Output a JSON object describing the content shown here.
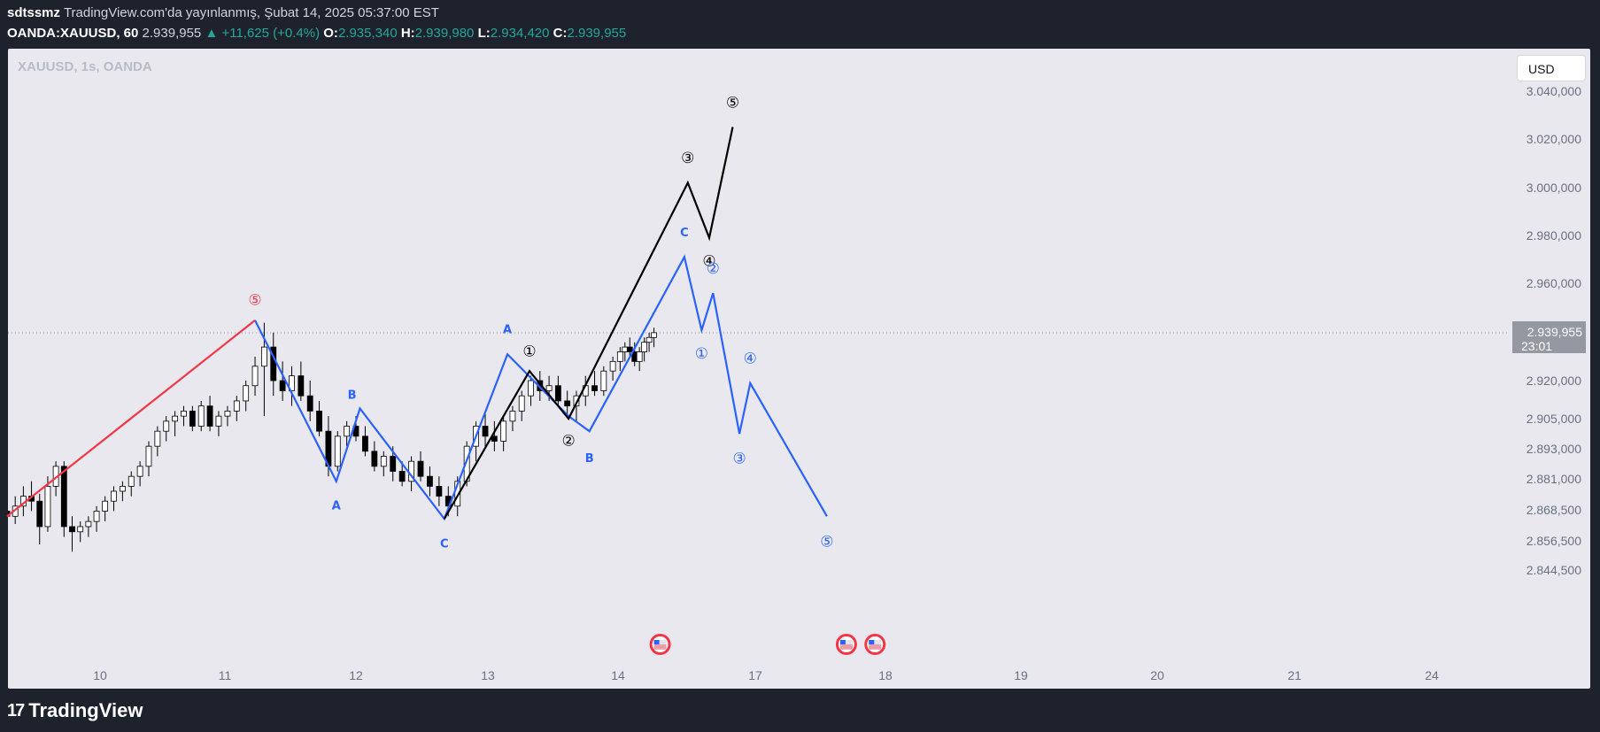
{
  "header": {
    "author": "sdtssmz",
    "published": "TradingView.com'da yayınlanmış, Şubat 14, 2025 05:37:00 EST",
    "symbol": "OANDA:XAUUSD, 60",
    "last": "2.939,955",
    "change": "▲ +11,625 (+0.4%)",
    "o_label": "O:",
    "o": "2.935,340",
    "h_label": "H:",
    "h": "2.939,980",
    "l_label": "L:",
    "l": "2.934,420",
    "c_label": "C:",
    "c": "2.939,955"
  },
  "watermark": "XAUUSD, 1s, OANDA",
  "currency_button": "USD",
  "footer": {
    "brand": "TradingView",
    "logo": "17"
  },
  "colors": {
    "up": "#26a69a",
    "accent_blue": "#2962ff",
    "red": "#f23645",
    "black": "#000000",
    "panel_bg": "#e8e8ee",
    "page_bg": "#1e222d"
  },
  "chart_data": {
    "type": "candlestick",
    "y_axis_ticks": [
      "3.040,000",
      "3.020,000",
      "3.000,000",
      "2.980,000",
      "2.960,000",
      "2.920,000",
      "2.905,000",
      "2.893,000",
      "2.881,000",
      "2.868,500",
      "2.856,500",
      "2.844,500"
    ],
    "x_axis_ticks": [
      "10",
      "11",
      "12",
      "13",
      "14",
      "17",
      "18",
      "19",
      "20",
      "21",
      "24"
    ],
    "current_price": {
      "label": "2.939,955",
      "countdown": "23:01"
    },
    "price_scale": {
      "ticks": [
        3040,
        3020,
        3000,
        2980,
        2960,
        2939.955,
        2920,
        2905,
        2893,
        2881,
        2868.5,
        2856.5,
        2844.5
      ],
      "y_pos": [
        103,
        157,
        212,
        266,
        320,
        376,
        430,
        473,
        507,
        541,
        576,
        611,
        644
      ]
    },
    "time_scale": {
      "ticks": [
        9.2,
        10,
        11,
        12,
        13,
        14,
        15,
        16,
        17,
        18,
        19,
        20,
        21,
        22,
        23,
        24
      ],
      "x_pos": [
        8,
        113,
        254,
        402,
        551,
        698,
        776,
        815,
        853,
        1000,
        1153,
        1307,
        1462,
        1540,
        1579,
        1617
      ]
    },
    "candles": [
      [
        9.2,
        2868,
        2872,
        2862,
        2866
      ],
      [
        9.27,
        2866,
        2874,
        2863,
        2870
      ],
      [
        9.34,
        2870,
        2878,
        2866,
        2874
      ],
      [
        9.41,
        2874,
        2880,
        2868,
        2872
      ],
      [
        9.48,
        2872,
        2875,
        2855,
        2862
      ],
      [
        9.55,
        2862,
        2882,
        2860,
        2878
      ],
      [
        9.62,
        2878,
        2888,
        2874,
        2886
      ],
      [
        9.69,
        2886,
        2888,
        2858,
        2862
      ],
      [
        9.76,
        2862,
        2866,
        2852,
        2860
      ],
      [
        9.83,
        2860,
        2864,
        2856,
        2862
      ],
      [
        9.9,
        2862,
        2866,
        2858,
        2864
      ],
      [
        9.97,
        2864,
        2870,
        2860,
        2868
      ],
      [
        10.04,
        2868,
        2874,
        2864,
        2872
      ],
      [
        10.11,
        2872,
        2878,
        2868,
        2876
      ],
      [
        10.18,
        2876,
        2880,
        2872,
        2878
      ],
      [
        10.25,
        2878,
        2884,
        2874,
        2882
      ],
      [
        10.32,
        2882,
        2888,
        2878,
        2886
      ],
      [
        10.39,
        2886,
        2896,
        2882,
        2894
      ],
      [
        10.46,
        2894,
        2902,
        2890,
        2900
      ],
      [
        10.53,
        2900,
        2906,
        2896,
        2904
      ],
      [
        10.6,
        2904,
        2908,
        2898,
        2906
      ],
      [
        10.67,
        2906,
        2910,
        2902,
        2908
      ],
      [
        10.74,
        2908,
        2910,
        2900,
        2902
      ],
      [
        10.81,
        2902,
        2912,
        2900,
        2910
      ],
      [
        10.88,
        2910,
        2914,
        2900,
        2902
      ],
      [
        10.95,
        2902,
        2908,
        2898,
        2906
      ],
      [
        11.02,
        2906,
        2910,
        2902,
        2908
      ],
      [
        11.09,
        2908,
        2914,
        2904,
        2912
      ],
      [
        11.16,
        2912,
        2920,
        2908,
        2918
      ],
      [
        11.23,
        2918,
        2930,
        2914,
        2926
      ],
      [
        11.3,
        2926,
        2944,
        2906,
        2934
      ],
      [
        11.37,
        2934,
        2940,
        2914,
        2920
      ],
      [
        11.44,
        2920,
        2928,
        2912,
        2916
      ],
      [
        11.51,
        2916,
        2926,
        2910,
        2922
      ],
      [
        11.58,
        2922,
        2928,
        2912,
        2914
      ],
      [
        11.65,
        2914,
        2920,
        2904,
        2908
      ],
      [
        11.72,
        2908,
        2912,
        2898,
        2900
      ],
      [
        11.79,
        2900,
        2906,
        2882,
        2886
      ],
      [
        11.86,
        2886,
        2900,
        2884,
        2898
      ],
      [
        11.93,
        2898,
        2904,
        2894,
        2902
      ],
      [
        12.0,
        2902,
        2906,
        2896,
        2898
      ],
      [
        12.07,
        2898,
        2902,
        2890,
        2892
      ],
      [
        12.14,
        2892,
        2896,
        2884,
        2886
      ],
      [
        12.21,
        2886,
        2892,
        2882,
        2890
      ],
      [
        12.28,
        2890,
        2894,
        2880,
        2884
      ],
      [
        12.35,
        2884,
        2888,
        2878,
        2880
      ],
      [
        12.42,
        2880,
        2890,
        2876,
        2888
      ],
      [
        12.49,
        2888,
        2892,
        2880,
        2882
      ],
      [
        12.56,
        2882,
        2886,
        2874,
        2878
      ],
      [
        12.63,
        2878,
        2882,
        2870,
        2874
      ],
      [
        12.7,
        2874,
        2878,
        2866,
        2870
      ],
      [
        12.77,
        2870,
        2882,
        2866,
        2880
      ],
      [
        12.84,
        2880,
        2896,
        2878,
        2894
      ],
      [
        12.91,
        2894,
        2904,
        2888,
        2902
      ],
      [
        12.98,
        2902,
        2908,
        2894,
        2898
      ],
      [
        13.05,
        2898,
        2904,
        2892,
        2896
      ],
      [
        13.12,
        2896,
        2906,
        2892,
        2904
      ],
      [
        13.19,
        2904,
        2910,
        2900,
        2908
      ],
      [
        13.26,
        2908,
        2916,
        2904,
        2914
      ],
      [
        13.33,
        2914,
        2922,
        2910,
        2920
      ],
      [
        13.4,
        2920,
        2924,
        2912,
        2916
      ],
      [
        13.47,
        2916,
        2922,
        2912,
        2918
      ],
      [
        13.54,
        2918,
        2922,
        2910,
        2912
      ],
      [
        13.61,
        2912,
        2916,
        2906,
        2910
      ],
      [
        13.68,
        2910,
        2916,
        2904,
        2914
      ],
      [
        13.75,
        2914,
        2922,
        2910,
        2918
      ],
      [
        13.82,
        2918,
        2924,
        2914,
        2916
      ],
      [
        13.89,
        2916,
        2926,
        2914,
        2924
      ],
      [
        13.96,
        2924,
        2930,
        2920,
        2928
      ],
      [
        14.03,
        2928,
        2934,
        2924,
        2932
      ],
      [
        14.1,
        2932,
        2936,
        2928,
        2934
      ],
      [
        14.17,
        2934,
        2938,
        2930,
        2932
      ],
      [
        14.24,
        2932,
        2936,
        2926,
        2928
      ],
      [
        14.31,
        2928,
        2934,
        2924,
        2932
      ],
      [
        14.38,
        2932,
        2938,
        2928,
        2936
      ],
      [
        14.45,
        2936,
        2940,
        2932,
        2938
      ],
      [
        14.52,
        2938,
        2942,
        2934,
        2940
      ]
    ],
    "wave_lines": [
      {
        "color": "red",
        "points": [
          [
            9.2,
            2866
          ],
          [
            11.23,
            2945
          ]
        ]
      },
      {
        "color": "blue",
        "points": [
          [
            11.23,
            2945
          ],
          [
            11.85,
            2880
          ],
          [
            12.03,
            2909
          ],
          [
            12.67,
            2865
          ],
          [
            13.15,
            2931
          ],
          [
            13.62,
            2906
          ],
          [
            13.78,
            2900
          ],
          [
            14.96,
            2971
          ],
          [
            15.42,
            2941
          ],
          [
            15.75,
            2956
          ],
          [
            16.53,
            2899
          ],
          [
            16.85,
            2919
          ],
          [
            17.55,
            2866
          ]
        ]
      },
      {
        "color": "black",
        "points": [
          [
            12.67,
            2865
          ],
          [
            13.32,
            2924
          ],
          [
            13.62,
            2905
          ],
          [
            15.02,
            3002
          ],
          [
            15.64,
            2979
          ],
          [
            16.33,
            3025
          ]
        ]
      }
    ],
    "labels": [
      {
        "text": "⑤",
        "color": "red",
        "at": [
          11.23,
          2953
        ]
      },
      {
        "text": "A",
        "color": "blue",
        "at": [
          11.85,
          2870
        ]
      },
      {
        "text": "B",
        "color": "blue",
        "at": [
          11.97,
          2914
        ]
      },
      {
        "text": "C",
        "color": "blue",
        "at": [
          12.67,
          2855
        ]
      },
      {
        "text": "A",
        "color": "blue",
        "at": [
          13.15,
          2941
        ]
      },
      {
        "text": "①",
        "color": "black",
        "at": [
          13.32,
          2932
        ]
      },
      {
        "text": "②",
        "color": "black",
        "at": [
          13.62,
          2896
        ]
      },
      {
        "text": "B",
        "color": "blue",
        "at": [
          13.78,
          2889
        ]
      },
      {
        "text": "C",
        "color": "blue",
        "at": [
          14.96,
          2981
        ]
      },
      {
        "text": "③",
        "color": "black",
        "at": [
          15.02,
          3012
        ]
      },
      {
        "text": "④",
        "color": "black",
        "at": [
          15.64,
          2969
        ]
      },
      {
        "text": "①",
        "color": "blue",
        "at": [
          15.42,
          2931
        ]
      },
      {
        "text": "②",
        "color": "blue",
        "at": [
          15.75,
          2966
        ]
      },
      {
        "text": "③",
        "color": "blue",
        "at": [
          16.53,
          2889
        ]
      },
      {
        "text": "④",
        "color": "blue",
        "at": [
          16.85,
          2929
        ]
      },
      {
        "text": "⑤",
        "color": "blue",
        "at": [
          17.55,
          2856
        ]
      },
      {
        "text": "⑤",
        "color": "black",
        "at": [
          16.33,
          3035
        ]
      }
    ],
    "events": [
      14.61,
      17.7,
      17.92
    ]
  }
}
